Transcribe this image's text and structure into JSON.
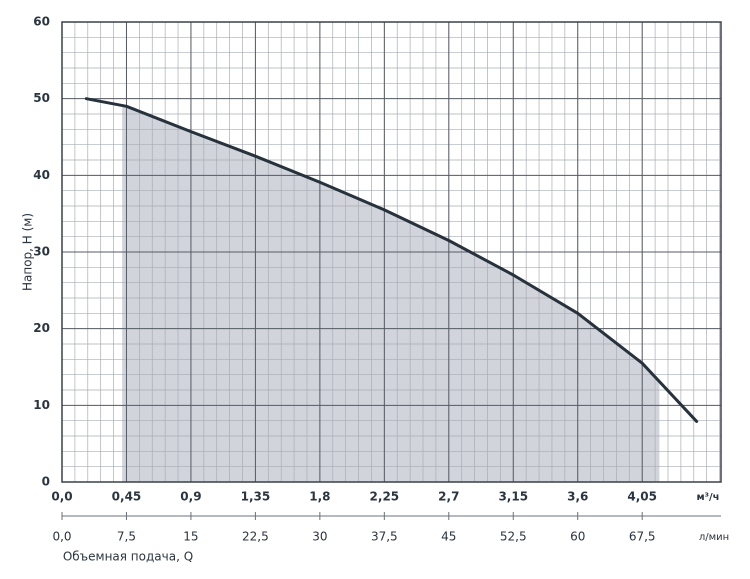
{
  "chart_data": {
    "type": "line",
    "ylabel": "Напор, H (м)",
    "xunit": "м³/ч",
    "x2unit": "л/мин",
    "x2label": "Объемная подача, Q",
    "x": [
      0.17,
      0.45,
      0.9,
      1.35,
      1.8,
      2.25,
      2.7,
      3.15,
      3.6,
      4.05,
      4.43
    ],
    "series": [
      {
        "color": "#27323d",
        "values": [
          50,
          49,
          45.7,
          42.5,
          39.1,
          35.5,
          31.5,
          27,
          22,
          15.5,
          7.9
        ]
      }
    ],
    "operating_range": [
      0.42,
      4.17
    ],
    "area_color": "#d2d4dc",
    "xlim": [
      0,
      4.6
    ],
    "ylim": [
      0,
      60
    ],
    "x2lim": [
      0,
      76.67
    ],
    "xticks": [
      {
        "value": 0,
        "label": "0,0"
      },
      {
        "value": 0.45,
        "label": "0,45"
      },
      {
        "value": 0.9,
        "label": "0,9"
      },
      {
        "value": 1.35,
        "label": "1,35"
      },
      {
        "value": 1.8,
        "label": "1,8"
      },
      {
        "value": 2.25,
        "label": "2,25"
      },
      {
        "value": 2.7,
        "label": "2,7"
      },
      {
        "value": 3.15,
        "label": "3,15"
      },
      {
        "value": 3.6,
        "label": "3,6"
      },
      {
        "value": 4.05,
        "label": "4,05"
      }
    ],
    "x2ticks": [
      {
        "value": 0,
        "label": "0,0"
      },
      {
        "value": 7.5,
        "label": "7,5"
      },
      15,
      {
        "value": 22.5,
        "label": "22,5"
      },
      30,
      {
        "value": 37.5,
        "label": "37,5"
      },
      45,
      {
        "value": 52.5,
        "label": "52,5"
      },
      60,
      {
        "value": 67.5,
        "label": "67,5"
      }
    ],
    "yticks": [
      0,
      10,
      20,
      30,
      40,
      50,
      60
    ],
    "x_minor_step": 0.09,
    "y_minor_step": 2,
    "grid": true
  }
}
